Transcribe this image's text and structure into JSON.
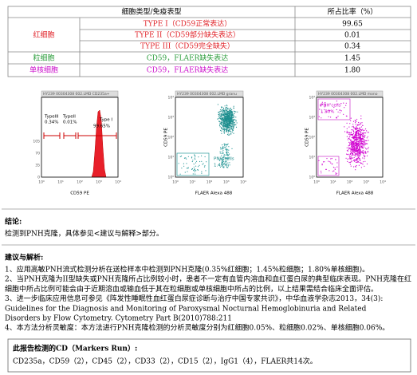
{
  "table": {
    "header": [
      "细胞类型/免疫表型",
      "所占比率（%）"
    ],
    "groups": [
      {
        "label": "红细胞",
        "rows": [
          {
            "phenotype": "TYPE I（CD59正常表达）",
            "ratio": "99.65"
          },
          {
            "phenotype": "TYPE II（CD59部分缺失表达）",
            "ratio": "0.01"
          },
          {
            "phenotype": "TYPE III（CD59完全缺失）",
            "ratio": "0.34"
          }
        ]
      },
      {
        "label": "粒细胞",
        "rows": [
          {
            "phenotype": "CD59，FLAER缺失表达",
            "ratio": "1.45"
          }
        ]
      },
      {
        "label": "单核细胞",
        "rows": [
          {
            "phenotype": "CD59，FLAER缺失表达",
            "ratio": "1.80"
          }
        ]
      }
    ]
  },
  "plots": [
    {
      "title": "HY239 00304308 002.LMD CD235a+",
      "x_label": "CD59 PE",
      "xticks": [
        "10⁰",
        "10¹",
        "10²",
        "10³",
        "10⁴"
      ],
      "yticks": [
        "0",
        "35",
        "70",
        "105"
      ],
      "gates": [
        {
          "name": "TypeIII",
          "value": "0.34%"
        },
        {
          "name": "TypeII",
          "value": "0.01%"
        },
        {
          "name": "Type I",
          "value": "99.65%"
        }
      ]
    },
    {
      "title": "HY239 00304308 002.LMD granu",
      "x_label": "FLAER Alexa 488",
      "y_label": "CD59 PE",
      "xticks": [
        "10⁰",
        "10¹",
        "10²",
        "10³",
        "10⁴"
      ],
      "yticks": [
        "10⁰",
        "10¹",
        "10²",
        "10³",
        "10⁴"
      ],
      "gate": {
        "name": "PNH cells",
        "value": "1.45%"
      }
    },
    {
      "title": "HY239 00304308 002.LMD mono",
      "x_label": "FLAER Alexa 488",
      "y_label": "CD59 PE",
      "xticks": [
        "10⁰",
        "10¹",
        "10²",
        "10³",
        "10⁴"
      ],
      "yticks": [
        "10⁰",
        "10¹",
        "10²",
        "10³",
        "10⁴"
      ],
      "gate": {
        "name": "PNH cells",
        "value": "1.80%"
      }
    }
  ],
  "conclusion": {
    "title": "结论:",
    "text": "检测到PNH克隆，具体参见<建议与解释>部分。"
  },
  "advice": {
    "title": "建议与解析:",
    "lines": [
      "1、应用高敏PNH流式检测分析在送检样本中检测到PNH克隆(0.35%红细胞；1.45%粒细胞；1.80%单核细胞)。",
      "2、当PNH克隆为II型缺失或PNH克隆所占比例较小时，患者不一定有血管内溶血和血红蛋白尿的典型临床表现。PNH克隆在红",
      "细胞中所占比例可能会由于近期溶血或输血低于其在粒细胞或单核细胞中所占的比例，以上结果需结合临床全面评估。",
      "3、进一步临床应用信息可参见《阵发性睡眠性血红蛋白尿症诊断与治疗中国专家共识》，中华血液学杂志2013，34(3):",
      "Guidelines for the Diagnosis and Monitoring of Paroxysmal Nocturnal Hemoglobinuria and Related",
      "Disorders by Flow Cytometry. Cytometry Part B(2010)788:211",
      "4、本方法分析灵敏度：本方法进行PNH克隆检测的分析灵敏度分别为红细胞0.05%、粒细胞0.02%、单核细胞0.06%。"
    ]
  },
  "markers": {
    "title": "此报告检测的CD（Markers Run）:",
    "text": "CD235a，CD59（2），CD45（2），CD33（2），CD15（2），IgG1（4），FLAER共14次。"
  }
}
